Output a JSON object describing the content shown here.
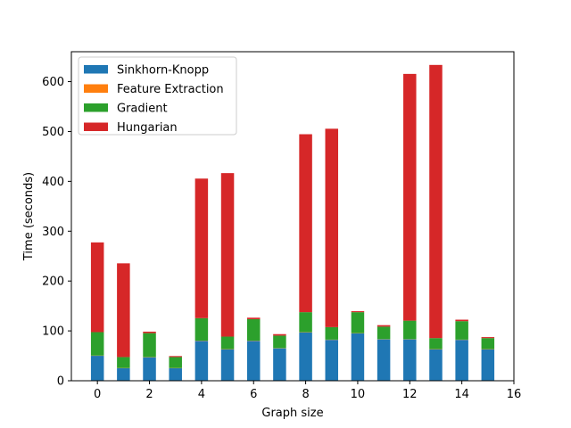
{
  "chart_data": {
    "type": "bar",
    "stacked": true,
    "title": "",
    "xlabel": "Graph size",
    "ylabel": "Time (seconds)",
    "xlim": [
      -1,
      16
    ],
    "ylim": [
      0,
      660
    ],
    "x_ticks": [
      0,
      2,
      4,
      6,
      8,
      10,
      12,
      14,
      16
    ],
    "y_ticks": [
      0,
      100,
      200,
      300,
      400,
      500,
      600
    ],
    "legend_position": "top-left",
    "categories": [
      0,
      1,
      2,
      3,
      4,
      5,
      6,
      7,
      8,
      9,
      10,
      11,
      12,
      13,
      14,
      15
    ],
    "series": [
      {
        "name": "Sinkhorn-Knopp",
        "color": "#1f77b4",
        "values": [
          50,
          25,
          47,
          25,
          80,
          63,
          80,
          65,
          97,
          82,
          95,
          83,
          83,
          63,
          82,
          63
        ]
      },
      {
        "name": "Feature Extraction",
        "color": "#ff7f0e",
        "values": [
          0.5,
          0.5,
          0.5,
          0.5,
          0.5,
          0.5,
          0.5,
          0.5,
          0.5,
          0.5,
          0.5,
          0.5,
          0.5,
          0.5,
          0.5,
          0.5
        ]
      },
      {
        "name": "Gradient",
        "color": "#2ca02c",
        "values": [
          47,
          22,
          48,
          22,
          45,
          25,
          43,
          25,
          40,
          25,
          42,
          25,
          37,
          22,
          37,
          22
        ]
      },
      {
        "name": "Hungarian",
        "color": "#d62728",
        "values": [
          180,
          188,
          3,
          2,
          280,
          328,
          3,
          3,
          357,
          398,
          2,
          3,
          495,
          548,
          3,
          2
        ]
      }
    ]
  }
}
